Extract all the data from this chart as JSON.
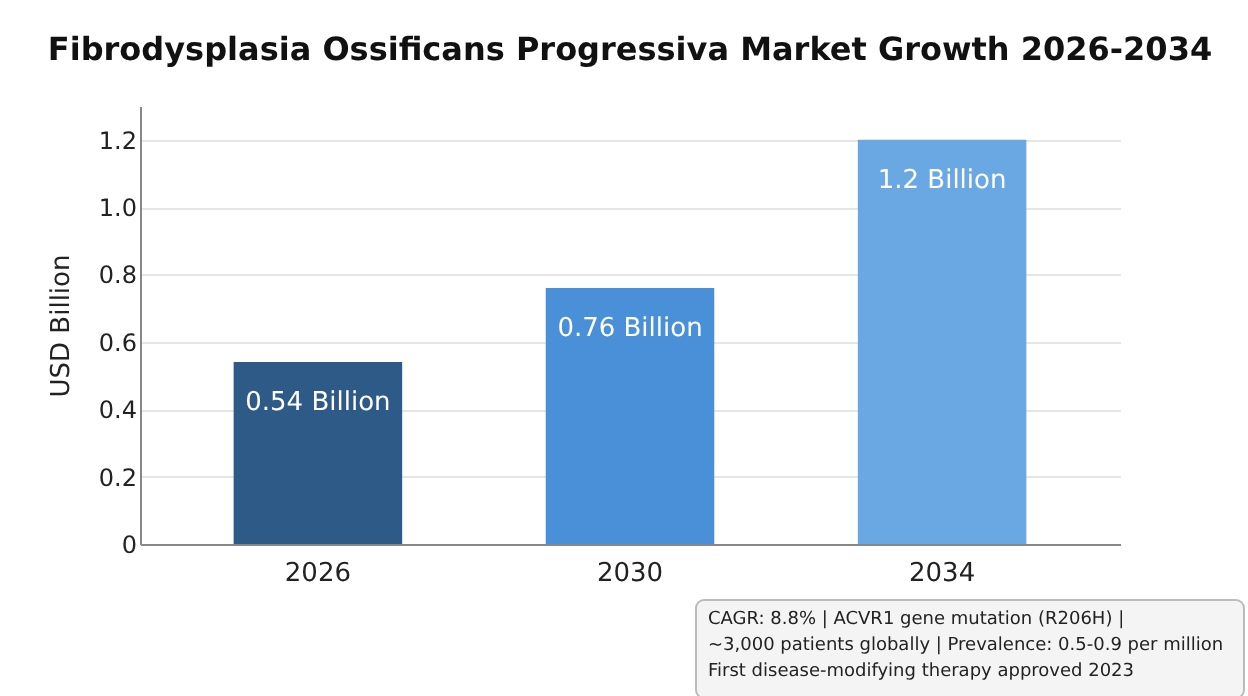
{
  "chart_data": {
    "type": "bar",
    "title": "Fibrodysplasia Ossificans Progressiva Market Growth 2026-2034",
    "ylabel": "USD Billion",
    "categories": [
      "2026",
      "2030",
      "2034"
    ],
    "values": [
      0.54,
      0.76,
      1.2
    ],
    "colors": [
      "#2e5a87",
      "#4a90d9",
      "#6aa8e3"
    ],
    "value_labels": [
      "0.54 Billion",
      "0.76 Billion",
      "1.2 Billion"
    ],
    "ylim": [
      0,
      1.3
    ],
    "yticks": [
      {
        "value": 0,
        "label": "0"
      },
      0.2,
      0.4,
      0.6,
      0.8,
      {
        "value": 1,
        "label": "1.0"
      },
      1.2
    ],
    "grid": "y",
    "legend": false,
    "annotations": [
      "CAGR: 8.8% | ACVR1 gene mutation (R206H) |",
      "~3,000 patients globally | Prevalence: 0.5-0.9 per million",
      "First disease-modifying therapy approved 2023"
    ]
  }
}
